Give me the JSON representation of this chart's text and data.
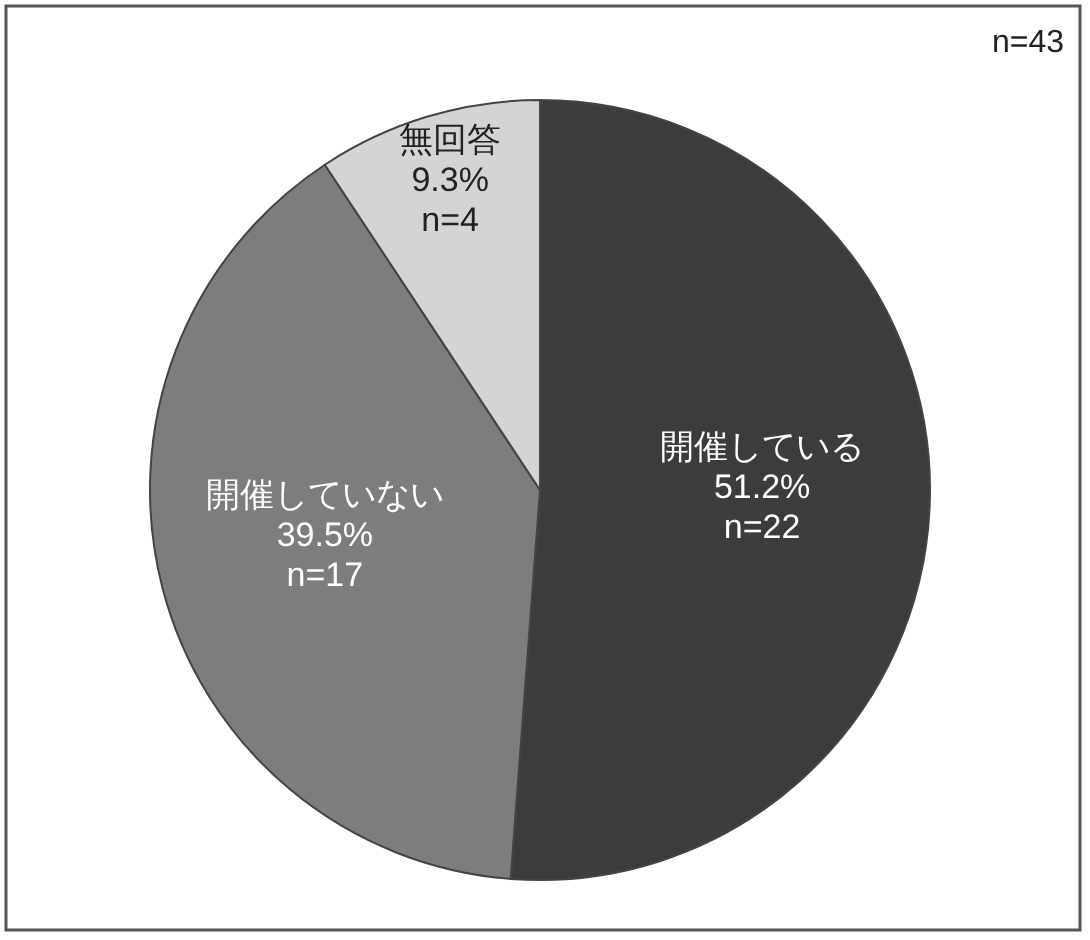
{
  "chart_data": {
    "type": "pie",
    "categories": [
      "開催している",
      "開催していない",
      "無回答"
    ],
    "values": [
      51.2,
      39.5,
      9.3
    ],
    "colors": [
      "#3c3c3c",
      "#7d7d7d",
      "#d4d4d4"
    ],
    "value_labels": [
      "51.2%\nn=22",
      "39.5%\nn=17",
      "9.3%\nn=4"
    ],
    "annotations": [
      "n=43"
    ]
  }
}
